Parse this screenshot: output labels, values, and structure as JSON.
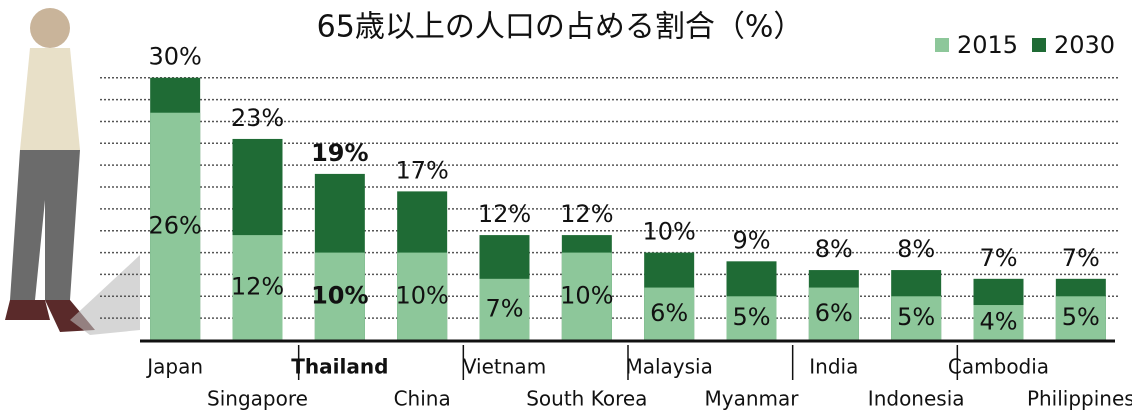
{
  "chart_data": {
    "type": "bar",
    "title": "65歳以上の人口の占める割合（%）",
    "categories": [
      "Japan",
      "Singapore",
      "Thailand",
      "China",
      "Vietnam",
      "South Korea",
      "Malaysia",
      "Myanmar",
      "India",
      "Indonesia",
      "Cambodia",
      "Philippines"
    ],
    "series": [
      {
        "name": "2030",
        "color": "#1f6b35",
        "values": [
          30,
          23,
          19,
          17,
          12,
          12,
          10,
          9,
          8,
          8,
          7,
          7
        ],
        "value_labels": [
          "30%",
          "23%",
          "19%",
          "17%",
          "12%",
          "12%",
          "10%",
          "9%",
          "8%",
          "8%",
          "7%",
          "7%"
        ]
      },
      {
        "name": "2015",
        "color": "#8dc79a",
        "values": [
          26,
          12,
          10,
          10,
          7,
          10,
          6,
          5,
          6,
          5,
          4,
          5
        ],
        "value_labels": [
          "26%",
          "12%",
          "10%",
          "10%",
          "7%",
          "10%",
          "6%",
          "5%",
          "6%",
          "5%",
          "4%",
          "5%"
        ]
      }
    ],
    "ylim": [
      0,
      31
    ],
    "yticks": [
      2.5,
      5,
      7.5,
      10,
      12.5,
      15,
      17.5,
      20,
      22.5,
      25,
      27.5,
      30
    ],
    "grid": true
  }
}
